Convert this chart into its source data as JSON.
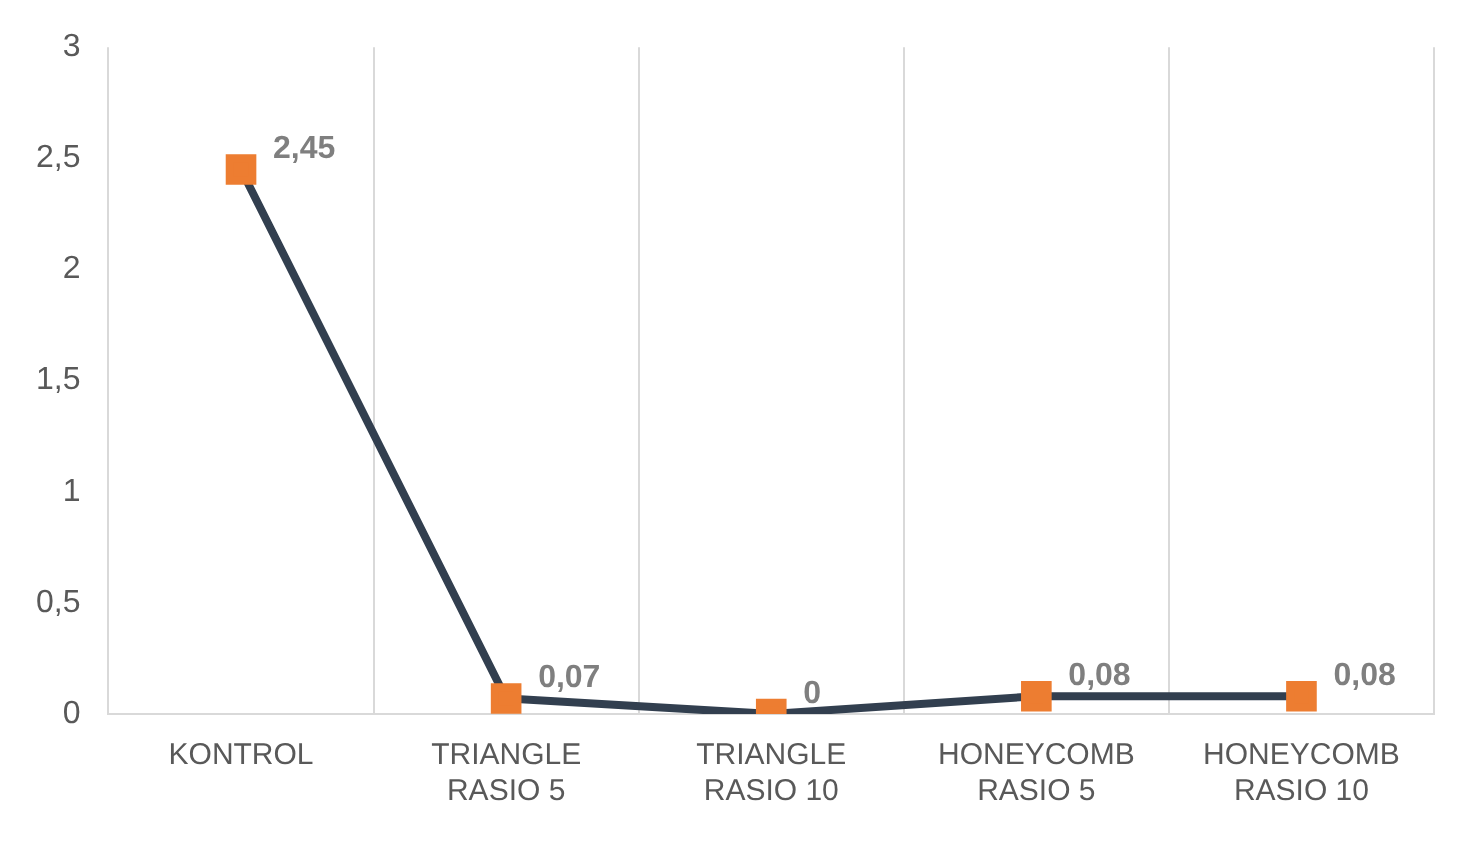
{
  "chart_data": {
    "type": "line",
    "categories": [
      "KONTROL",
      "TRIANGLE RASIO 5",
      "TRIANGLE RASIO 10",
      "HONEYCOMB RASIO 5",
      "HONEYCOMB RASIO 10"
    ],
    "series": [
      {
        "color": "#323f4f",
        "colors": [
          "#ed7d31",
          "#ed7d31",
          "#ed7d31",
          "#ed7d31",
          "#ed7d31"
        ],
        "values": [
          2.45,
          0.07,
          0,
          0.08,
          0.08
        ],
        "value_labels": [
          "2,45",
          "0,07",
          "0",
          "0,08",
          "0,08"
        ]
      }
    ],
    "ylim": [
      0,
      3
    ],
    "yticks": [
      0,
      {
        "value": 0.5,
        "label": "0,5"
      },
      1,
      {
        "value": 1.5,
        "label": "1,5"
      },
      2,
      {
        "value": 2.5,
        "label": "2,5"
      },
      3
    ],
    "grid": "x",
    "marker": "square",
    "line_style": "solid",
    "legend": false
  }
}
